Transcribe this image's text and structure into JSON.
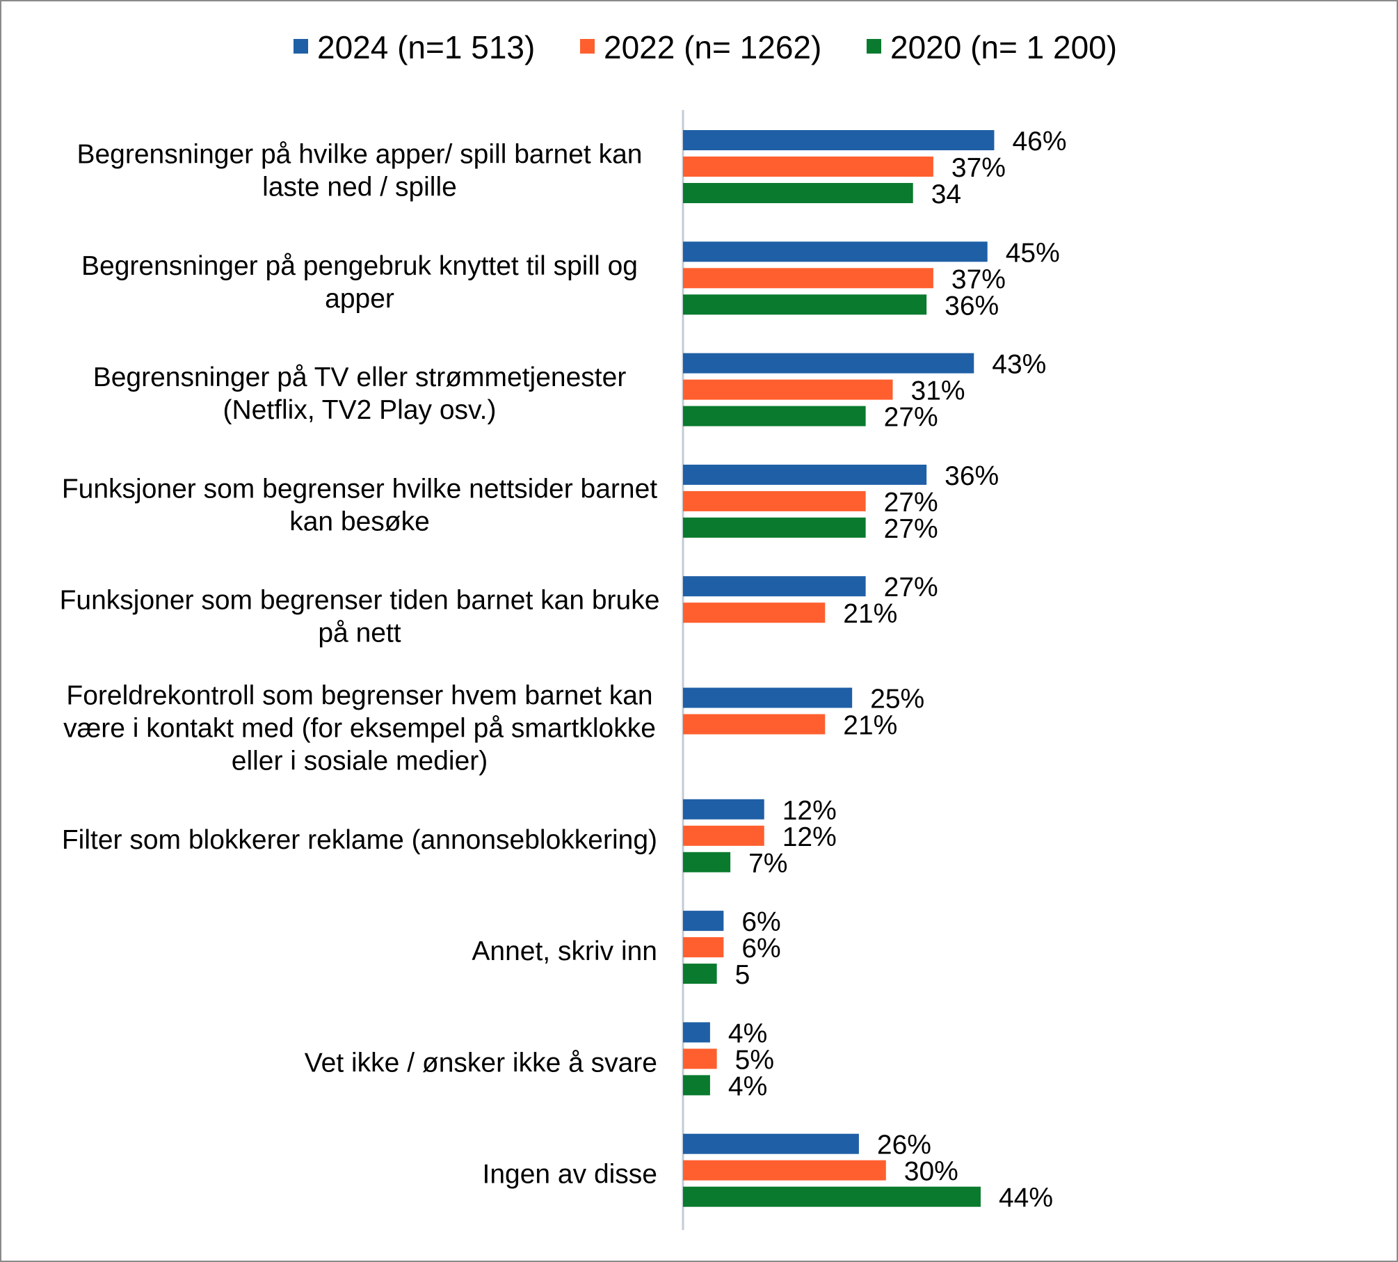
{
  "chart_data": {
    "type": "bar",
    "orientation": "horizontal",
    "title": "",
    "xlabel": "",
    "ylabel": "",
    "xlim": [
      0,
      100
    ],
    "grid": false,
    "legend_position": "top",
    "categories": [
      [
        "Begrensninger på hvilke apper/ spill barnet kan",
        "laste ned / spille"
      ],
      [
        "Begrensninger på pengebruk knyttet til spill og",
        "apper"
      ],
      [
        "Begrensninger på TV eller strømmetjenester",
        "(Netflix, TV2 Play osv.)"
      ],
      [
        "Funksjoner som begrenser hvilke nettsider barnet",
        "kan besøke"
      ],
      [
        "Funksjoner som begrenser tiden barnet kan bruke",
        "på nett"
      ],
      [
        "Foreldrekontroll som begrenser hvem barnet kan",
        "være i kontakt med (for eksempel på smartklokke",
        "eller i sosiale medier)"
      ],
      [
        "Filter som blokkerer reklame (annonseblokkering)"
      ],
      [
        "Annet, skriv inn"
      ],
      [
        "Vet ikke / ønsker ikke å svare"
      ],
      [
        "Ingen av disse"
      ]
    ],
    "series": [
      {
        "name": "2024 (n=1 513)",
        "color": "#1f5fa6",
        "values": [
          46,
          45,
          43,
          36,
          27,
          25,
          12,
          6,
          4,
          26
        ],
        "labels": [
          "46%",
          "45%",
          "43%",
          "36%",
          "27%",
          "25%",
          "12%",
          "6%",
          "4%",
          "26%"
        ]
      },
      {
        "name": "2022 (n= 1262)",
        "color": "#ff5f2e",
        "values": [
          37,
          37,
          31,
          27,
          21,
          21,
          12,
          6,
          5,
          30
        ],
        "labels": [
          "37%",
          "37%",
          "31%",
          "27%",
          "21%",
          "21%",
          "12%",
          "6%",
          "5%",
          "30%"
        ]
      },
      {
        "name": "2020 (n= 1 200)",
        "color": "#0a7a2e",
        "values": [
          34,
          36,
          27,
          27,
          null,
          null,
          7,
          5,
          4,
          44
        ],
        "labels": [
          "34",
          "36%",
          "27%",
          "27%",
          "",
          "",
          "7%",
          "5",
          "4%",
          "44%"
        ]
      }
    ]
  }
}
